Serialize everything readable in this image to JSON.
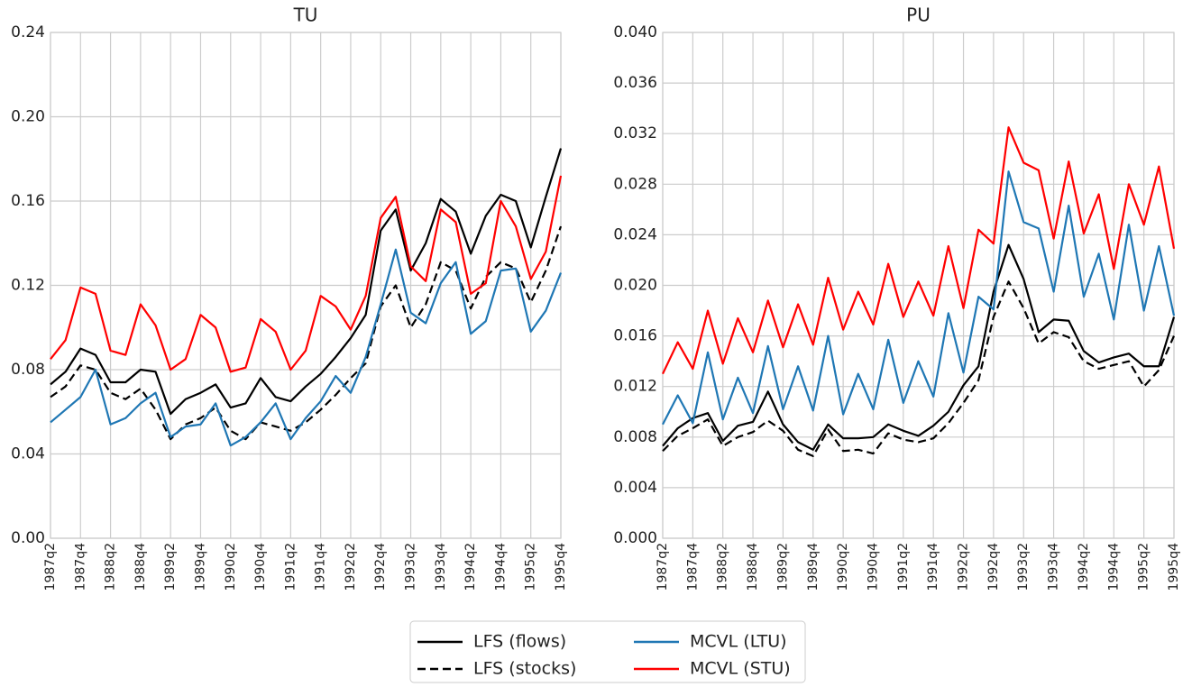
{
  "chart_data": [
    {
      "type": "line",
      "title": "TU",
      "categories": [
        "1987q2",
        null,
        "1987q4",
        null,
        "1988q2",
        null,
        "1988q4",
        null,
        "1989q2",
        null,
        "1989q4",
        null,
        "1990q2",
        null,
        "1990q4",
        null,
        "1991q2",
        null,
        "1991q4",
        null,
        "1992q2",
        null,
        "1992q4",
        null,
        "1993q2",
        null,
        "1993q4",
        null,
        "1994q2",
        null,
        "1994q4",
        null,
        "1995q2",
        null,
        "1995q4"
      ],
      "ylim": [
        0,
        0.24
      ],
      "yticks": [
        {
          "value": 0,
          "label": "0.00"
        },
        0.04,
        0.08,
        0.12,
        0.16,
        {
          "value": 0.2,
          "label": "0.20"
        },
        0.24
      ],
      "grid": true,
      "legend": "lower center",
      "series": [
        {
          "name": "LFS (flows)",
          "color": "#000000",
          "linestyle": "solid",
          "values": [
            0.073,
            0.079,
            0.09,
            0.087,
            0.074,
            0.074,
            0.08,
            0.079,
            0.059,
            0.066,
            0.069,
            0.073,
            0.062,
            0.064,
            0.076,
            0.067,
            0.065,
            0.072,
            0.078,
            0.086,
            0.095,
            0.106,
            0.146,
            0.156,
            0.127,
            0.14,
            0.161,
            0.155,
            0.135,
            0.153,
            0.163,
            0.16,
            0.138,
            0.162,
            0.185
          ]
        },
        {
          "name": "LFS (stocks)",
          "color": "#000000",
          "linestyle": "dashed",
          "values": [
            0.067,
            0.072,
            0.082,
            0.08,
            0.069,
            0.066,
            0.071,
            0.061,
            0.047,
            0.054,
            0.057,
            0.062,
            0.051,
            0.047,
            0.055,
            0.053,
            0.051,
            0.055,
            0.061,
            0.068,
            0.076,
            0.083,
            0.11,
            0.12,
            0.1,
            0.111,
            0.131,
            0.127,
            0.109,
            0.124,
            0.131,
            0.128,
            0.112,
            0.127,
            0.148
          ]
        },
        {
          "name": "MCVL (LTU)",
          "color": "#1f77b4",
          "linestyle": "solid",
          "values": [
            0.055,
            0.061,
            0.067,
            0.08,
            0.054,
            0.057,
            0.064,
            0.069,
            0.048,
            0.053,
            0.054,
            0.064,
            0.044,
            0.048,
            0.055,
            0.064,
            0.047,
            0.057,
            0.065,
            0.077,
            0.069,
            0.086,
            0.111,
            0.137,
            0.107,
            0.102,
            0.121,
            0.131,
            0.097,
            0.103,
            0.127,
            0.128,
            0.098,
            0.108,
            0.126
          ]
        },
        {
          "name": "MCVL (STU)",
          "color": "#ff0000",
          "linestyle": "solid",
          "values": [
            0.085,
            0.094,
            0.119,
            0.116,
            0.089,
            0.087,
            0.111,
            0.101,
            0.08,
            0.085,
            0.106,
            0.1,
            0.079,
            0.081,
            0.104,
            0.098,
            0.08,
            0.089,
            0.115,
            0.11,
            0.099,
            0.115,
            0.152,
            0.162,
            0.129,
            0.122,
            0.156,
            0.15,
            0.116,
            0.121,
            0.16,
            0.148,
            0.123,
            0.136,
            0.172
          ]
        }
      ]
    },
    {
      "type": "line",
      "title": "PU",
      "categories": [
        "1987q2",
        null,
        "1987q4",
        null,
        "1988q2",
        null,
        "1988q4",
        null,
        "1989q2",
        null,
        "1989q4",
        null,
        "1990q2",
        null,
        "1990q4",
        null,
        "1991q2",
        null,
        "1991q4",
        null,
        "1992q2",
        null,
        "1992q4",
        null,
        "1993q2",
        null,
        "1993q4",
        null,
        "1994q2",
        null,
        "1994q4",
        null,
        "1995q2",
        null,
        "1995q4"
      ],
      "ylim": [
        0,
        0.04
      ],
      "yticks": [
        {
          "value": 0,
          "label": "0.000"
        },
        0.004,
        0.008,
        0.012,
        0.016,
        {
          "value": 0.02,
          "label": "0.020"
        },
        0.024,
        0.028,
        0.032,
        0.036,
        {
          "value": 0.04,
          "label": "0.040"
        }
      ],
      "grid": true,
      "series": [
        {
          "name": "LFS (flows)",
          "color": "#000000",
          "linestyle": "solid",
          "values": [
            0.0073,
            0.0087,
            0.0095,
            0.0099,
            0.0077,
            0.0089,
            0.0092,
            0.0116,
            0.009,
            0.0076,
            0.007,
            0.009,
            0.0079,
            0.0079,
            0.008,
            0.009,
            0.0085,
            0.0081,
            0.0089,
            0.01,
            0.0121,
            0.0136,
            0.0195,
            0.0232,
            0.0205,
            0.0163,
            0.0173,
            0.0172,
            0.0148,
            0.0139,
            0.0143,
            0.0146,
            0.0136,
            0.0136,
            0.0175
          ]
        },
        {
          "name": "LFS (stocks)",
          "color": "#000000",
          "linestyle": "dashed",
          "values": [
            0.0069,
            0.0081,
            0.0087,
            0.0094,
            0.0073,
            0.008,
            0.0084,
            0.0093,
            0.0085,
            0.007,
            0.0065,
            0.0086,
            0.0069,
            0.007,
            0.0067,
            0.0083,
            0.0078,
            0.0076,
            0.0079,
            0.0091,
            0.0107,
            0.0125,
            0.0175,
            0.0203,
            0.0182,
            0.0154,
            0.0163,
            0.0159,
            0.014,
            0.0134,
            0.0137,
            0.014,
            0.012,
            0.0133,
            0.016
          ]
        },
        {
          "name": "MCVL (LTU)",
          "color": "#1f77b4",
          "linestyle": "solid",
          "values": [
            0.009,
            0.0113,
            0.0091,
            0.0147,
            0.0094,
            0.0127,
            0.0099,
            0.0152,
            0.0102,
            0.0136,
            0.0101,
            0.016,
            0.0098,
            0.013,
            0.0102,
            0.0157,
            0.0107,
            0.014,
            0.0112,
            0.0178,
            0.0131,
            0.0191,
            0.0181,
            0.029,
            0.025,
            0.0245,
            0.0195,
            0.0263,
            0.0191,
            0.0225,
            0.0173,
            0.0248,
            0.018,
            0.0231,
            0.0176
          ]
        },
        {
          "name": "MCVL (STU)",
          "color": "#ff0000",
          "linestyle": "solid",
          "values": [
            0.013,
            0.0155,
            0.0134,
            0.018,
            0.0138,
            0.0174,
            0.0147,
            0.0188,
            0.0151,
            0.0185,
            0.0153,
            0.0206,
            0.0165,
            0.0195,
            0.0169,
            0.0217,
            0.0175,
            0.0203,
            0.0176,
            0.0231,
            0.0182,
            0.0244,
            0.0233,
            0.0325,
            0.0297,
            0.0291,
            0.0237,
            0.0298,
            0.0241,
            0.0272,
            0.0213,
            0.028,
            0.0248,
            0.0294,
            0.0229
          ]
        }
      ]
    }
  ]
}
